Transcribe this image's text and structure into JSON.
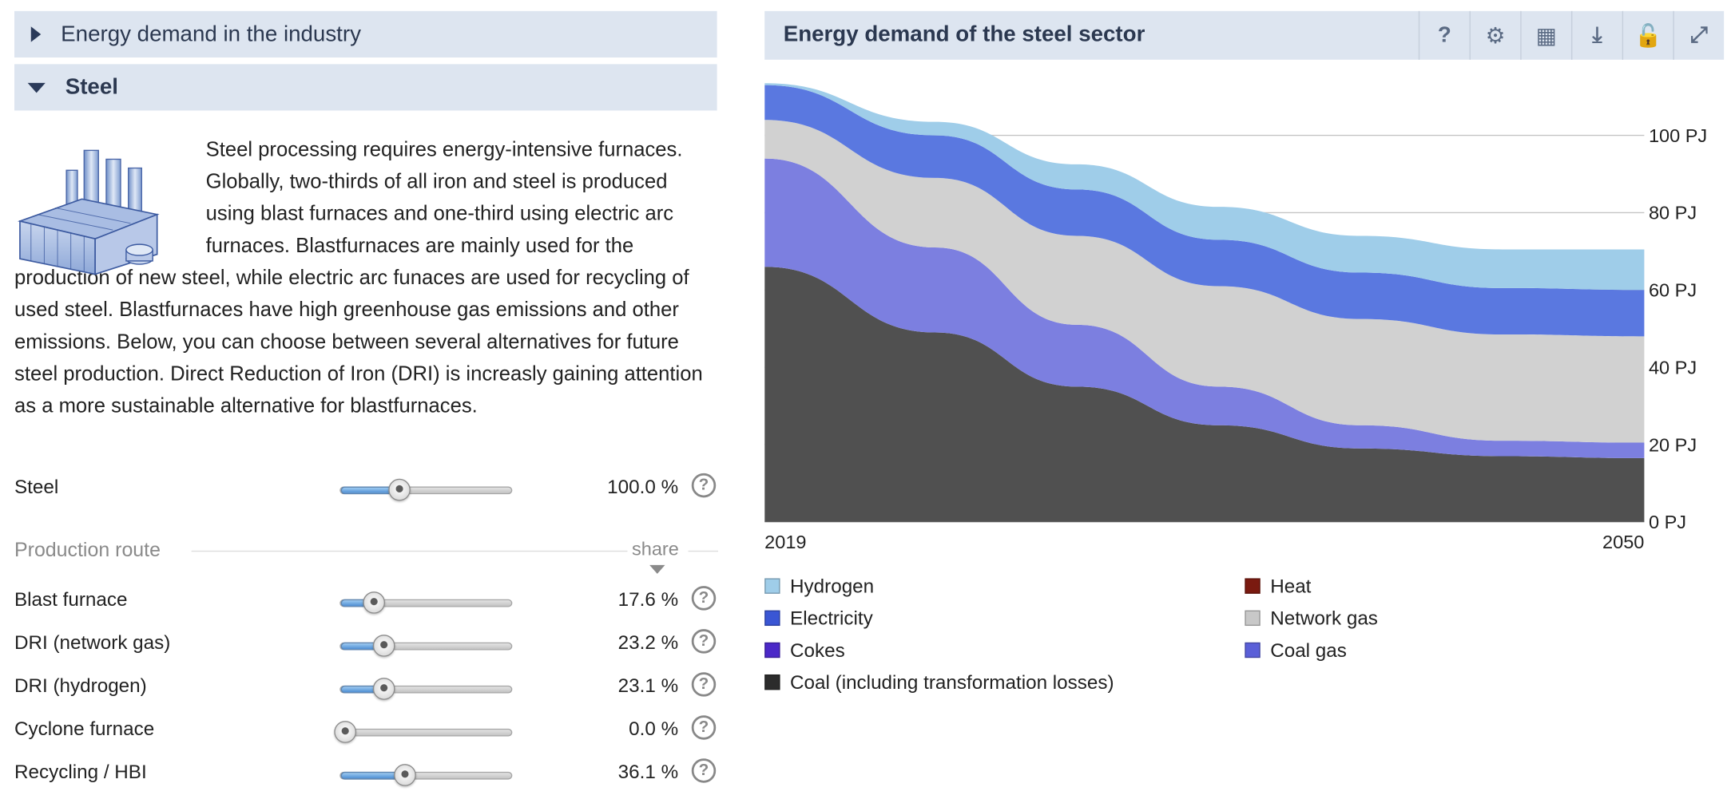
{
  "accordion": {
    "industry_title": "Energy demand in the industry",
    "steel_title": "Steel"
  },
  "description": "Steel processing requires energy-intensive furnaces. Globally, two-thirds of all iron and steel is produced using blast furnaces and one-third using electric arc furnaces. Blastfurnaces are mainly used for the production of new steel, while electric arc funaces are used for recycling of used steel. Blastfurnaces have high greenhouse gas emissions and other emissions. Below, you can choose between several alternatives for future steel production. Direct Reduction of Iron (DRI) is increasly gaining attention as a more sustainable alternative for blastfurnaces.",
  "steel_slider": {
    "label": "Steel",
    "value_text": "100.0 %",
    "level": 0.34
  },
  "production_route": {
    "title": "Production route",
    "share_label": "share",
    "sliders": [
      {
        "label": "Blast furnace",
        "value_text": "17.6 %",
        "level": 0.19
      },
      {
        "label": "DRI (network gas)",
        "value_text": "23.2 %",
        "level": 0.25
      },
      {
        "label": "DRI (hydrogen)",
        "value_text": "23.1 %",
        "level": 0.25
      },
      {
        "label": "Cyclone furnace",
        "value_text": "0.0 %",
        "level": 0.0
      },
      {
        "label": "Recycling / HBI",
        "value_text": "36.1 %",
        "level": 0.37
      }
    ]
  },
  "help_glyph": "?",
  "chart_panel": {
    "title": "Energy demand of the steel sector",
    "toolbar": [
      {
        "name": "help-button",
        "icon": "question-icon",
        "glyph": "?"
      },
      {
        "name": "settings-button",
        "icon": "gears-icon",
        "glyph": "⚙"
      },
      {
        "name": "table-button",
        "icon": "table-icon",
        "glyph": "▦"
      },
      {
        "name": "download-button",
        "icon": "download-icon",
        "glyph": "⤓"
      },
      {
        "name": "lock-button",
        "icon": "unlock-icon",
        "glyph": "🔓"
      },
      {
        "name": "fullscreen-button",
        "icon": "expand-icon",
        "glyph": "⤢"
      }
    ]
  },
  "chart_data": {
    "type": "area",
    "stacked": true,
    "x": [
      2019,
      2025,
      2030,
      2035,
      2040,
      2045,
      2050
    ],
    "x_tick_labels": [
      "2019",
      "2050"
    ],
    "y_ticks": [
      "0 PJ",
      "20 PJ",
      "40 PJ",
      "60 PJ",
      "80 PJ",
      "100 PJ"
    ],
    "ylim": [
      0,
      115
    ],
    "grid": true,
    "y_axis_side": "right",
    "legend_position": "bottom",
    "series": [
      {
        "name": "Coal (including transformation losses)",
        "color": "#505050",
        "values": [
          66,
          49,
          35,
          25,
          19,
          17,
          16.5
        ]
      },
      {
        "name": "Cokes",
        "color": "#4b28c8",
        "values": [
          0,
          0,
          0,
          0,
          0,
          0,
          0
        ]
      },
      {
        "name": "Coal gas",
        "color": "#7c7fe0",
        "values": [
          28,
          22,
          16,
          10,
          6,
          4,
          4
        ]
      },
      {
        "name": "Heat",
        "color": "#7a1a10",
        "values": [
          0,
          0,
          0,
          0,
          0,
          0,
          0
        ]
      },
      {
        "name": "Network gas",
        "color": "#d1d1d1",
        "values": [
          10,
          18,
          23,
          26,
          27.5,
          27.5,
          27.5
        ]
      },
      {
        "name": "Electricity",
        "color": "#5a78e0",
        "values": [
          9,
          11,
          12,
          12,
          12,
          12,
          12
        ]
      },
      {
        "name": "Hydrogen",
        "color": "#9fcde9",
        "values": [
          0.5,
          3.5,
          6.5,
          8.5,
          9.5,
          10,
          10.5
        ]
      }
    ],
    "legend_order": [
      {
        "name": "Hydrogen",
        "color": "#9fcde9"
      },
      {
        "name": "Heat",
        "color": "#7a1a10"
      },
      {
        "name": "Electricity",
        "color": "#3a56d4"
      },
      {
        "name": "Network gas",
        "color": "#c8c8c8"
      },
      {
        "name": "Cokes",
        "color": "#4b28c8"
      },
      {
        "name": "Coal gas",
        "color": "#5a5fd8"
      },
      {
        "name": "Coal (including transformation losses)",
        "color": "#2c2c2c"
      }
    ]
  }
}
